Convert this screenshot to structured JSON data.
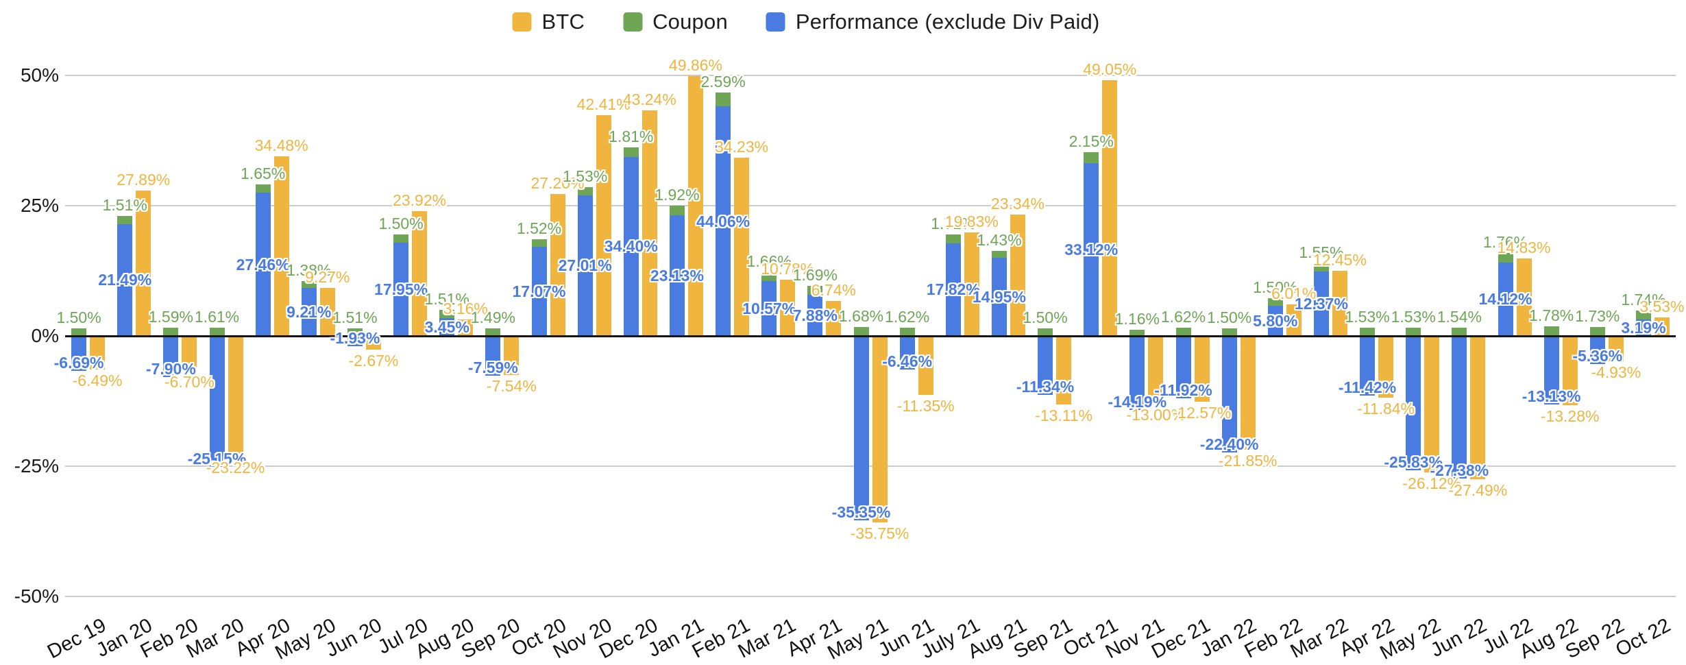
{
  "legend": {
    "items": [
      {
        "id": "btc",
        "label": "BTC",
        "color": "#EFB53F"
      },
      {
        "id": "coupon",
        "label": "Coupon",
        "color": "#6EA656"
      },
      {
        "id": "performance",
        "label": "Performance (exclude Div Paid)",
        "color": "#4A7BE0"
      }
    ]
  },
  "y_axis": {
    "ticks": [
      {
        "label": "50%",
        "value": 50
      },
      {
        "label": "25%",
        "value": 25
      },
      {
        "label": "0%",
        "value": 0
      },
      {
        "label": "-25%",
        "value": -25
      },
      {
        "label": "-50%",
        "value": -50
      }
    ]
  },
  "chart_data": {
    "type": "bar",
    "title": "",
    "xlabel": "",
    "ylabel": "",
    "ylim": [
      -50,
      50
    ],
    "grid": true,
    "legend_position": "top",
    "structure": "Coupon stacked on top of Performance column; BTC as separate adjacent column; values are monthly percent returns with labels shown to 2 decimals",
    "categories": [
      "Dec 19",
      "Jan 20",
      "Feb 20",
      "Mar 20",
      "Apr 20",
      "May 20",
      "Jun 20",
      "Jul 20",
      "Aug 20",
      "Sep 20",
      "Oct 20",
      "Nov 20",
      "Dec 20",
      "Jan 21",
      "Feb 21",
      "Mar 21",
      "Apr 21",
      "May 21",
      "Jun 21",
      "July 21",
      "Aug 21",
      "Sep 21",
      "Oct 21",
      "Nov 21",
      "Dec 21",
      "Jan 22",
      "Feb 22",
      "Mar 22",
      "Apr 22",
      "May 22",
      "Jun 22",
      "Jul 22",
      "Aug 22",
      "Sep 22",
      "Oct 22"
    ],
    "series": [
      {
        "name": "BTC",
        "color": "#EFB53F",
        "values": [
          -6.49,
          27.89,
          -6.7,
          -23.22,
          34.48,
          9.27,
          -2.67,
          23.92,
          3.16,
          -7.54,
          27.2,
          42.41,
          43.24,
          49.86,
          34.23,
          10.78,
          6.74,
          -35.75,
          -11.35,
          19.83,
          23.34,
          -13.11,
          49.05,
          -13.0,
          -12.57,
          -21.85,
          6.01,
          12.45,
          -11.84,
          -26.12,
          -27.49,
          14.83,
          -13.28,
          -4.93,
          3.53
        ]
      },
      {
        "name": "Coupon",
        "color": "#6EA656",
        "values": [
          1.5,
          1.51,
          1.59,
          1.61,
          1.65,
          1.38,
          1.51,
          1.5,
          1.51,
          1.49,
          1.52,
          1.53,
          1.81,
          1.92,
          2.59,
          1.66,
          1.69,
          1.68,
          1.62,
          1.71,
          1.43,
          1.5,
          2.15,
          1.16,
          1.62,
          1.5,
          1.5,
          1.55,
          1.53,
          1.53,
          1.54,
          1.76,
          1.78,
          1.73,
          1.74
        ]
      },
      {
        "name": "Performance (exclude Div Paid)",
        "color": "#4A7BE0",
        "values": [
          -6.69,
          21.49,
          -7.9,
          -25.15,
          27.46,
          9.21,
          -1.93,
          17.95,
          3.45,
          -7.59,
          17.07,
          27.01,
          34.4,
          23.13,
          44.06,
          10.57,
          7.88,
          -35.35,
          -6.46,
          17.82,
          14.95,
          -11.34,
          33.12,
          -14.19,
          -11.92,
          -22.4,
          5.8,
          12.37,
          -11.42,
          -25.83,
          -27.38,
          14.12,
          -13.13,
          -5.36,
          3.19
        ]
      }
    ]
  }
}
